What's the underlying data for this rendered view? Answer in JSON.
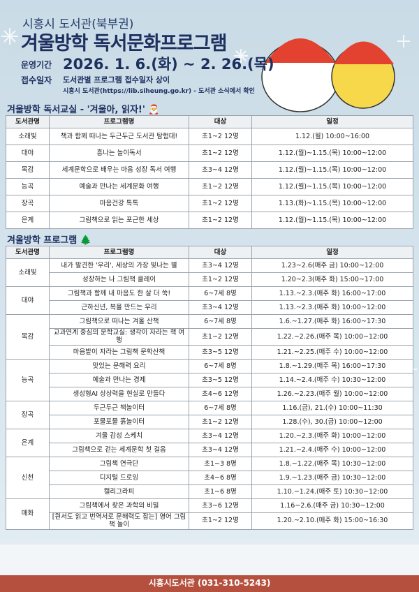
{
  "header": {
    "org": "시흥시 도서관(북부권)",
    "title": "겨울방학 독서문화프로그램",
    "period_label": "운영기간",
    "period": "2026. 1. 6.(화) ~ 2. 26.(목)",
    "reception_label": "접수일자",
    "reception": "도서관별 프로그램 접수일자 상이",
    "reception_note": "시흥시 도서관(https://lib.siheung.go.kr) - 도서관 소식에서 확인"
  },
  "reading_class": {
    "title": "겨울방학 독서교실 - '겨울아, 읽자!' 🎅",
    "columns": [
      "도서관명",
      "프로그램명",
      "대상",
      "일정"
    ],
    "rows": [
      [
        "소래빛",
        "책과 함께 떠나는 두근두근 도서관 탐험대!",
        "초1~2 12명",
        "1.12.(월) 10:00~16:00"
      ],
      [
        "대야",
        "흥나는 놀이독서",
        "초1~2 12명",
        "1.12.(월)~1.15.(목) 10:00~12:00"
      ],
      [
        "목감",
        "세계문학으로 배우는 마음 성장 독서 여행",
        "초3~4 12명",
        "1.12.(월)~1.15.(목) 10:00~12:00"
      ],
      [
        "능곡",
        "예술과 만나는 세계문화 여행",
        "초1~2 12명",
        "1.12.(월)~1.15.(목) 10:00~12:00"
      ],
      [
        "장곡",
        "마음건강 톡톡",
        "초1~2 12명",
        "1.13.(화)~1.15.(목) 10:00~12:00"
      ],
      [
        "은계",
        "그림책으로 읽는 포근한 세상",
        "초1~2 12명",
        "1.12.(월)~1.15.(목) 10:00~12:00"
      ]
    ]
  },
  "programs": {
    "title": "겨울방학 프로그램 🌲",
    "columns": [
      "도서관명",
      "프로그램명",
      "대상",
      "일정"
    ],
    "groups": [
      {
        "library": "소래빛",
        "rows": [
          [
            "내가 발견한 '우리', 세상의 가장 빛나는 별",
            "초3~4 12명",
            "1.23~2.6(매주 금) 10:00~12:00"
          ],
          [
            "성장하는 나 그림책 클레이",
            "초1~2 12명",
            "1.20~2.3(매주 화) 15:00~17:00"
          ]
        ]
      },
      {
        "library": "대야",
        "rows": [
          [
            "그림책과 함께 내 마음도 한 살 더 쑥!",
            "6~7세 8명",
            "1.13.~2.3.(매주 화) 16:00~17:00"
          ],
          [
            "근하신년, 복을 만드는 우리",
            "초3~4 12명",
            "1.13.~2.3.(매주 화) 10:00~12:00"
          ]
        ]
      },
      {
        "library": "목감",
        "rows": [
          [
            "그림책으로 떠나는 겨울 산책",
            "6~7세 8명",
            "1.6.~1.27.(매주 화) 16:00~17:30"
          ],
          [
            "교과연계 중심의 문학교실: 생각이 자라는 책 여행",
            "초1~2 12명",
            "1.22.~2.26.(매주 목) 10:00~12:00"
          ],
          [
            "마음밭이 자라는 그림책 문학산책",
            "초3~5 12명",
            "1.21.~2.25.(매주 수) 10:00~12:00"
          ]
        ]
      },
      {
        "library": "능곡",
        "rows": [
          [
            "맛있는 문해력 요리",
            "6~7세 8명",
            "1.8.~1.29.(매주 목) 16:00~17:30"
          ],
          [
            "예술과 만나는 경제",
            "초3~5 12명",
            "1.14.~2.4.(매주 수) 10:30~12:00"
          ],
          [
            "생성형AI 상상력을 현실로 만들다",
            "초4~6 12명",
            "1.26.~2.23.(매주 월) 10:00~12:00"
          ]
        ]
      },
      {
        "library": "장곡",
        "rows": [
          [
            "두근두근 책놀이터",
            "6~7세 8명",
            "1.16.(금), 21.(수) 10:00~11:30"
          ],
          [
            "포물포물 흙놀이터",
            "초1~2 12명",
            "1.28.(수), 30.(금) 10:00~12:00"
          ]
        ]
      },
      {
        "library": "은계",
        "rows": [
          [
            "겨울 감성 스케치",
            "초3~4 12명",
            "1.20.~2.3.(매주 화) 10:00~12:00"
          ],
          [
            "그림책으로 걷는 세계문학 첫 걸음",
            "초3~4 12명",
            "1.21.~2.4.(매주 수) 10:00~12:00"
          ]
        ]
      },
      {
        "library": "신천",
        "rows": [
          [
            "그림책 연극단",
            "초1~3 8명",
            "1.8.~1.22.(매주 목) 10:30~12:00"
          ],
          [
            "디지털 드로잉",
            "초4~6 8명",
            "1.9.~1.23.(매주 금) 10:30~12:00"
          ],
          [
            "캘리그라피",
            "초1~6 8명",
            "1.10.~1.24.(매주 토) 10:30~12:00"
          ]
        ]
      },
      {
        "library": "매화",
        "rows": [
          [
            "그림책에서 찾은 과학의 비밀",
            "초3~6 12명",
            "1.16~2.6.(매주 금) 10:30~12:00"
          ],
          [
            "[원서도 읽고 번역서로 문해력도 잡는] 영어 그림책 놀이",
            "초1~2 12명",
            "1.20.~2.10.(매주 화) 15:00~16:30"
          ]
        ]
      }
    ]
  },
  "footer": "시흥시도서관 (031-310-5243)"
}
